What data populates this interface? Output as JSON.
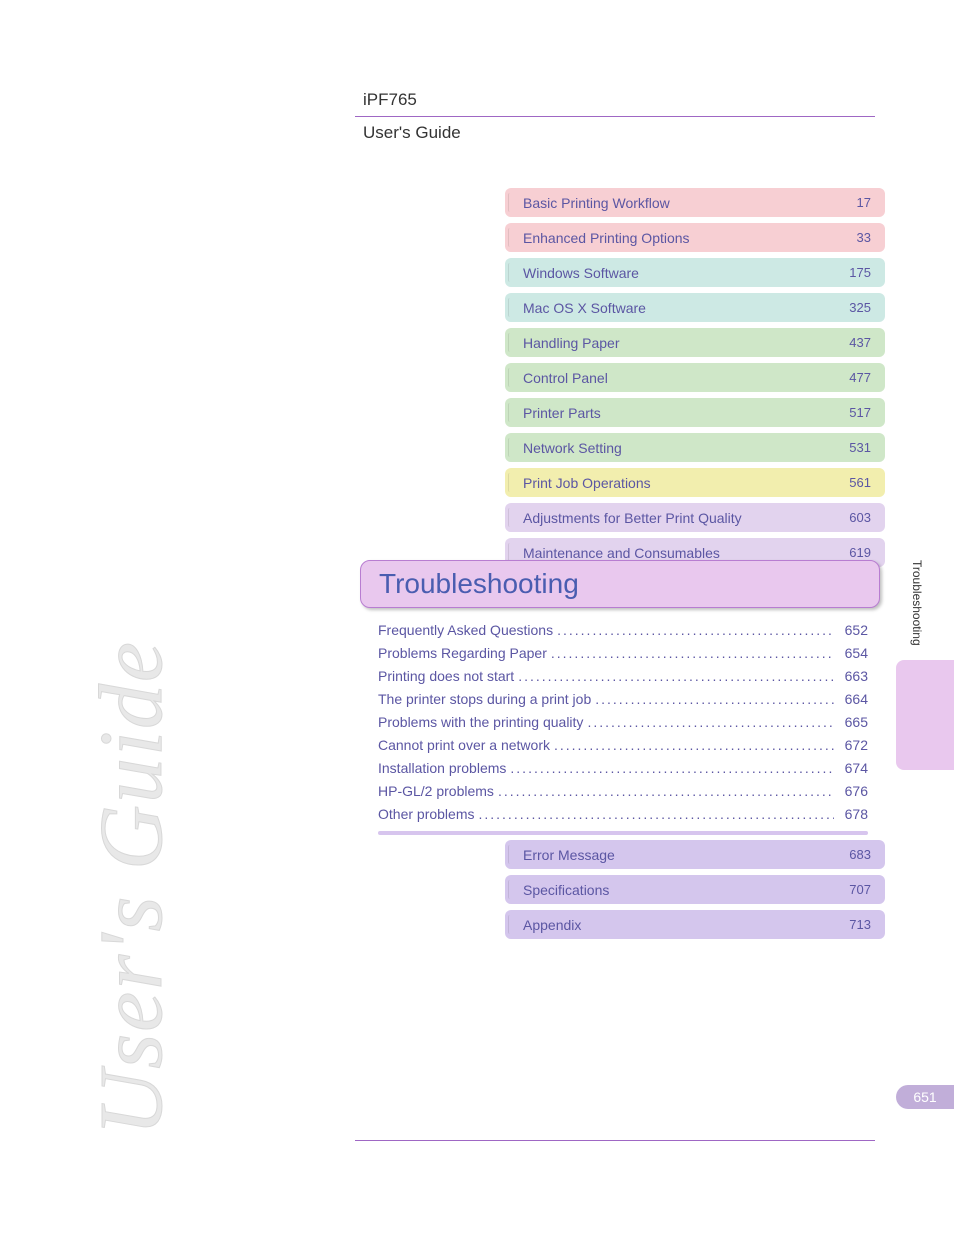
{
  "header": {
    "model": "iPF765",
    "subtitle": "User's Guide"
  },
  "colors": {
    "pink": "#f7cfd3",
    "teal": "#cde9e4",
    "green": "#cfe7c8",
    "yellow": "#f2eeae",
    "lavender_light": "#e2d3ee",
    "lavender": "#d4c6ed",
    "link": "#5b56a3",
    "section_bg": "#e9c8ee",
    "section_border": "#b87dd1"
  },
  "top_toc": [
    {
      "label": "Basic Printing Workflow",
      "page": "17",
      "color": "pink"
    },
    {
      "label": "Enhanced Printing Options",
      "page": "33",
      "color": "pink"
    },
    {
      "label": "Windows Software",
      "page": "175",
      "color": "teal"
    },
    {
      "label": "Mac OS X Software",
      "page": "325",
      "color": "teal"
    },
    {
      "label": "Handling Paper",
      "page": "437",
      "color": "green"
    },
    {
      "label": "Control Panel",
      "page": "477",
      "color": "green"
    },
    {
      "label": "Printer Parts",
      "page": "517",
      "color": "green"
    },
    {
      "label": "Network Setting",
      "page": "531",
      "color": "green"
    },
    {
      "label": "Print Job Operations",
      "page": "561",
      "color": "yellow"
    },
    {
      "label": "Adjustments for Better Print Quality",
      "page": "603",
      "color": "lavender_light"
    },
    {
      "label": "Maintenance and Consumables",
      "page": "619",
      "color": "lavender_light"
    }
  ],
  "section": {
    "title": "Troubleshooting"
  },
  "sub_toc": [
    {
      "title": "Frequently Asked Questions",
      "page": "652"
    },
    {
      "title": "Problems Regarding Paper",
      "page": "654"
    },
    {
      "title": "Printing does not start",
      "page": "663"
    },
    {
      "title": "The printer stops during a print job",
      "page": "664"
    },
    {
      "title": "Problems with the printing quality",
      "page": "665"
    },
    {
      "title": "Cannot print over a network",
      "page": "672"
    },
    {
      "title": "Installation problems",
      "page": "674"
    },
    {
      "title": "HP-GL/2 problems",
      "page": "676"
    },
    {
      "title": "Other problems",
      "page": "678"
    }
  ],
  "bottom_toc": [
    {
      "label": "Error Message",
      "page": "683",
      "color": "lavender"
    },
    {
      "label": "Specifications",
      "page": "707",
      "color": "lavender"
    },
    {
      "label": "Appendix",
      "page": "713",
      "color": "lavender"
    }
  ],
  "side": {
    "label": "Troubleshooting",
    "page_number": "651"
  },
  "watermark": "User's Guide"
}
